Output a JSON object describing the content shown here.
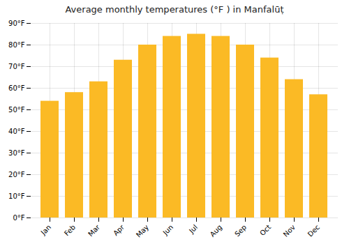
{
  "chart_data": {
    "type": "bar",
    "title": "Average monthly temperatures (°F ) in Manfalūṭ",
    "categories": [
      "Jan",
      "Feb",
      "Mar",
      "Apr",
      "May",
      "Jun",
      "Jul",
      "Aug",
      "Sep",
      "Oct",
      "Nov",
      "Dec"
    ],
    "values": [
      54,
      58,
      63,
      73,
      80,
      84,
      85,
      84,
      80,
      74,
      64,
      57
    ],
    "color": "#FBBA25",
    "ylim": [
      0,
      90
    ],
    "yticks": [
      {
        "value": 0,
        "label": "0°F"
      },
      {
        "value": 10,
        "label": "10°F"
      },
      {
        "value": 20,
        "label": "20°F"
      },
      {
        "value": 30,
        "label": "30°F"
      },
      {
        "value": 40,
        "label": "40°F"
      },
      {
        "value": 50,
        "label": "50°F"
      },
      {
        "value": 60,
        "label": "60°F"
      },
      {
        "value": 70,
        "label": "70°F"
      },
      {
        "value": 80,
        "label": "80°F"
      },
      {
        "value": 90,
        "label": "90°F"
      }
    ],
    "grid": true
  }
}
